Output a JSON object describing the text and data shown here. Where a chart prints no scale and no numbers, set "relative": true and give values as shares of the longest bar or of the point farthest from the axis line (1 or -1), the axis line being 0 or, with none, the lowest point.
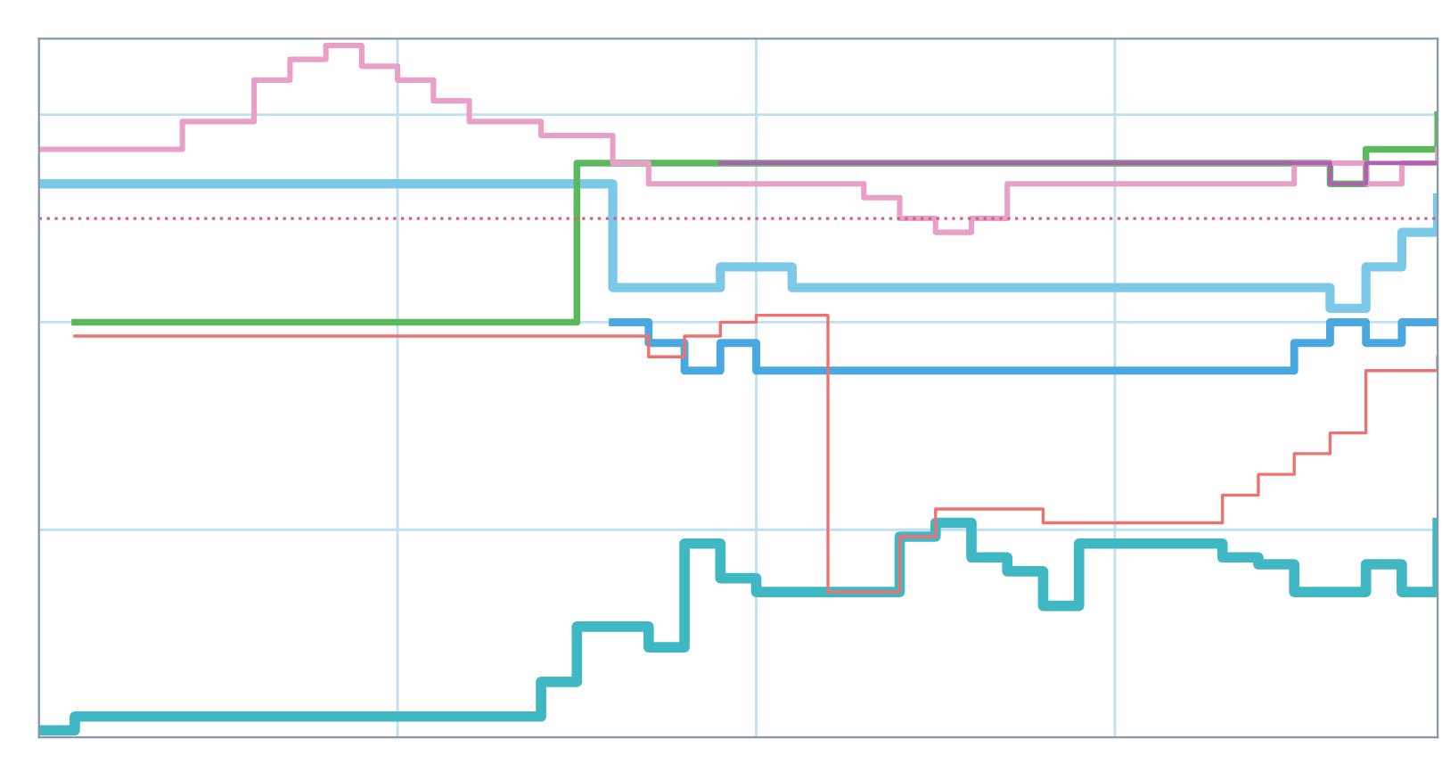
{
  "chart_data": {
    "type": "step",
    "relative": true,
    "grid": true,
    "marker": "none",
    "line_style": "solid",
    "categories": [
      null,
      null,
      null,
      null,
      null,
      null,
      null,
      null,
      null,
      null,
      null,
      null,
      null,
      null,
      null,
      null,
      null,
      null,
      null,
      null,
      null,
      null,
      null,
      null,
      null,
      null,
      null,
      null,
      null,
      null,
      null,
      null,
      null,
      null,
      null,
      null,
      null,
      null,
      null,
      null
    ],
    "series": [
      {
        "color": "#3fb8c4",
        "values": [
          0.01,
          0.03,
          0.03,
          0.03,
          0.03,
          0.03,
          0.03,
          0.03,
          0.03,
          0.03,
          0.03,
          0.03,
          0.03,
          0.03,
          0.08,
          0.16,
          0.16,
          0.13,
          0.28,
          0.23,
          0.21,
          0.21,
          0.21,
          0.21,
          0.29,
          0.31,
          0.26,
          0.24,
          0.19,
          0.28,
          0.28,
          0.28,
          0.28,
          0.26,
          0.25,
          0.21,
          0.21,
          0.25,
          0.21,
          0.31
        ]
      },
      {
        "color": "#7cc8e8",
        "values": [
          0.8,
          0.8,
          0.8,
          0.8,
          0.8,
          0.8,
          0.8,
          0.8,
          0.8,
          0.8,
          0.8,
          0.8,
          0.8,
          0.8,
          0.8,
          0.8,
          0.65,
          0.65,
          0.65,
          0.68,
          0.68,
          0.65,
          0.65,
          0.65,
          0.65,
          0.65,
          0.65,
          0.65,
          0.65,
          0.65,
          0.65,
          0.65,
          0.65,
          0.65,
          0.65,
          0.65,
          0.62,
          0.68,
          0.73,
          0.78
        ]
      },
      {
        "color": "#4aa8e0",
        "values": [
          null,
          null,
          null,
          null,
          null,
          null,
          null,
          null,
          null,
          null,
          null,
          null,
          null,
          null,
          null,
          null,
          0.6,
          0.57,
          0.53,
          0.57,
          0.53,
          0.53,
          0.53,
          0.53,
          0.53,
          0.53,
          0.53,
          0.53,
          0.53,
          0.53,
          0.53,
          0.53,
          0.53,
          0.53,
          0.53,
          0.57,
          0.6,
          0.57,
          0.6,
          0.6
        ]
      },
      {
        "color": "#5cb85c",
        "values": [
          null,
          0.6,
          0.6,
          0.6,
          0.6,
          0.6,
          0.6,
          0.6,
          0.6,
          0.6,
          0.6,
          0.6,
          0.6,
          0.6,
          0.6,
          0.83,
          0.83,
          0.83,
          0.83,
          0.83,
          0.83,
          0.83,
          0.83,
          0.83,
          0.83,
          0.83,
          0.83,
          0.83,
          0.83,
          0.83,
          0.83,
          0.83,
          0.83,
          0.83,
          0.83,
          0.83,
          0.8,
          0.85,
          0.85,
          0.9
        ]
      },
      {
        "color": "#e8a0c8",
        "values": [
          0.85,
          0.85,
          0.85,
          0.85,
          0.89,
          0.89,
          0.95,
          0.98,
          1.0,
          0.97,
          0.95,
          0.92,
          0.89,
          0.89,
          0.87,
          0.87,
          0.83,
          0.8,
          0.8,
          0.8,
          0.8,
          0.8,
          0.8,
          0.78,
          0.75,
          0.73,
          0.75,
          0.8,
          0.8,
          0.8,
          0.8,
          0.8,
          0.8,
          0.8,
          0.8,
          0.83,
          0.83,
          0.8,
          0.83,
          0.85
        ]
      },
      {
        "color": "#b060b0",
        "values": [
          null,
          null,
          null,
          null,
          null,
          null,
          null,
          null,
          null,
          null,
          null,
          null,
          null,
          null,
          null,
          null,
          null,
          null,
          null,
          0.83,
          0.83,
          0.83,
          0.83,
          0.83,
          0.83,
          0.83,
          0.83,
          0.83,
          0.83,
          0.83,
          0.83,
          0.83,
          0.83,
          0.83,
          0.83,
          0.83,
          0.8,
          0.83,
          0.83,
          0.83
        ]
      },
      {
        "color": "#f07070",
        "values": [
          null,
          0.58,
          0.58,
          0.58,
          0.58,
          0.58,
          0.58,
          0.58,
          0.58,
          0.58,
          0.58,
          0.58,
          0.58,
          0.58,
          0.58,
          0.58,
          0.58,
          0.55,
          0.58,
          0.6,
          0.61,
          0.61,
          0.21,
          0.21,
          0.29,
          0.33,
          0.33,
          0.33,
          0.31,
          0.31,
          0.31,
          0.31,
          0.31,
          0.35,
          0.38,
          0.41,
          0.44,
          0.53,
          0.53,
          0.55
        ]
      }
    ],
    "ref_lines": [
      {
        "axis": "y",
        "value": 0.75,
        "color": "#d86080",
        "line_style": "dotted"
      }
    ]
  }
}
